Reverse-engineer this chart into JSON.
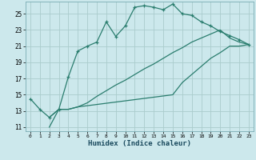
{
  "xlabel": "Humidex (Indice chaleur)",
  "bg_color": "#cce8ec",
  "grid_color": "#aacccc",
  "line_color": "#2a7d6e",
  "xlim": [
    -0.5,
    23.5
  ],
  "ylim": [
    10.5,
    26.5
  ],
  "xticks": [
    0,
    1,
    2,
    3,
    4,
    5,
    6,
    7,
    8,
    9,
    10,
    11,
    12,
    13,
    14,
    15,
    16,
    17,
    18,
    19,
    20,
    21,
    22,
    23
  ],
  "yticks": [
    11,
    13,
    15,
    17,
    19,
    21,
    23,
    25
  ],
  "line1_x": [
    0,
    1,
    2,
    3,
    4,
    5,
    6,
    7,
    8,
    9,
    10,
    11,
    12,
    13,
    14,
    15,
    16,
    17,
    18,
    19,
    20,
    21,
    22,
    23
  ],
  "line1_y": [
    14.5,
    13.2,
    12.2,
    13.2,
    17.2,
    20.4,
    21.0,
    21.5,
    24.0,
    22.2,
    23.5,
    25.8,
    26.0,
    25.8,
    25.5,
    26.2,
    25.0,
    24.8,
    24.0,
    23.5,
    22.8,
    22.3,
    21.8,
    21.2
  ],
  "line2_x": [
    2,
    3,
    4,
    5,
    6,
    7,
    8,
    9,
    10,
    11,
    12,
    13,
    14,
    15,
    16,
    17,
    18,
    19,
    20,
    21,
    22,
    23
  ],
  "line2_y": [
    11.0,
    13.2,
    13.2,
    13.5,
    14.0,
    14.8,
    15.5,
    16.2,
    16.8,
    17.5,
    18.2,
    18.8,
    19.5,
    20.2,
    20.8,
    21.5,
    22.0,
    22.5,
    23.0,
    22.0,
    21.5,
    21.2
  ],
  "line3_x": [
    2,
    3,
    4,
    5,
    15,
    16,
    17,
    18,
    19,
    20,
    21,
    22,
    23
  ],
  "line3_y": [
    12.2,
    13.2,
    13.2,
    13.5,
    15.0,
    16.5,
    17.5,
    18.5,
    19.5,
    20.2,
    21.0,
    21.0,
    21.2
  ]
}
